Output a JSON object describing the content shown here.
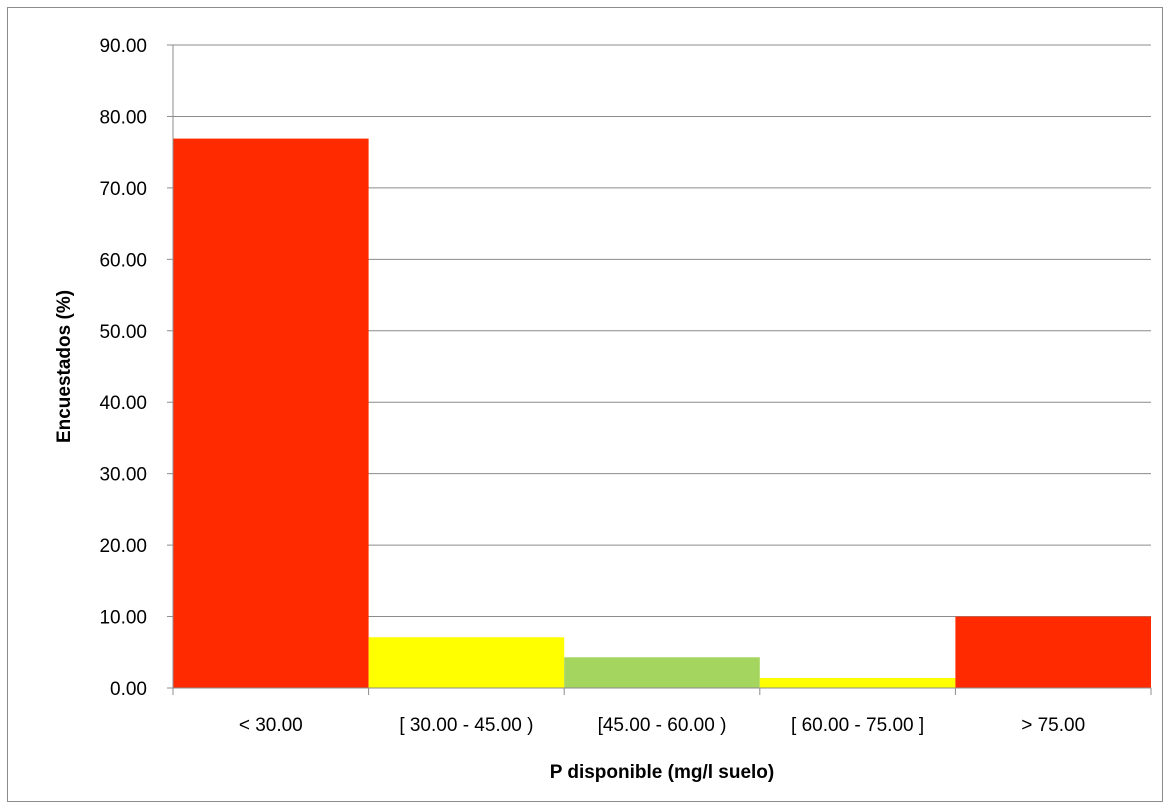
{
  "chart_data": {
    "type": "bar",
    "title": "",
    "xlabel": "P disponible (mg/l suelo)",
    "ylabel": "Encuestados (%)",
    "ylim": [
      0,
      90
    ],
    "yticks": [
      "0.00",
      "10.00",
      "20.00",
      "30.00",
      "40.00",
      "50.00",
      "60.00",
      "70.00",
      "80.00",
      "90.00"
    ],
    "grid": true,
    "legend": "none",
    "categories": [
      "< 30.00",
      "[ 30.00 - 45.00 )",
      "[45.00 - 60.00 )",
      "[ 60.00 - 75.00 ]",
      "> 75.00"
    ],
    "values": [
      76.9,
      7.1,
      4.3,
      1.4,
      10.0
    ],
    "colors": [
      "#ff2a00",
      "#ffff00",
      "#a4d55f",
      "#ffff00",
      "#ff2a00"
    ]
  }
}
